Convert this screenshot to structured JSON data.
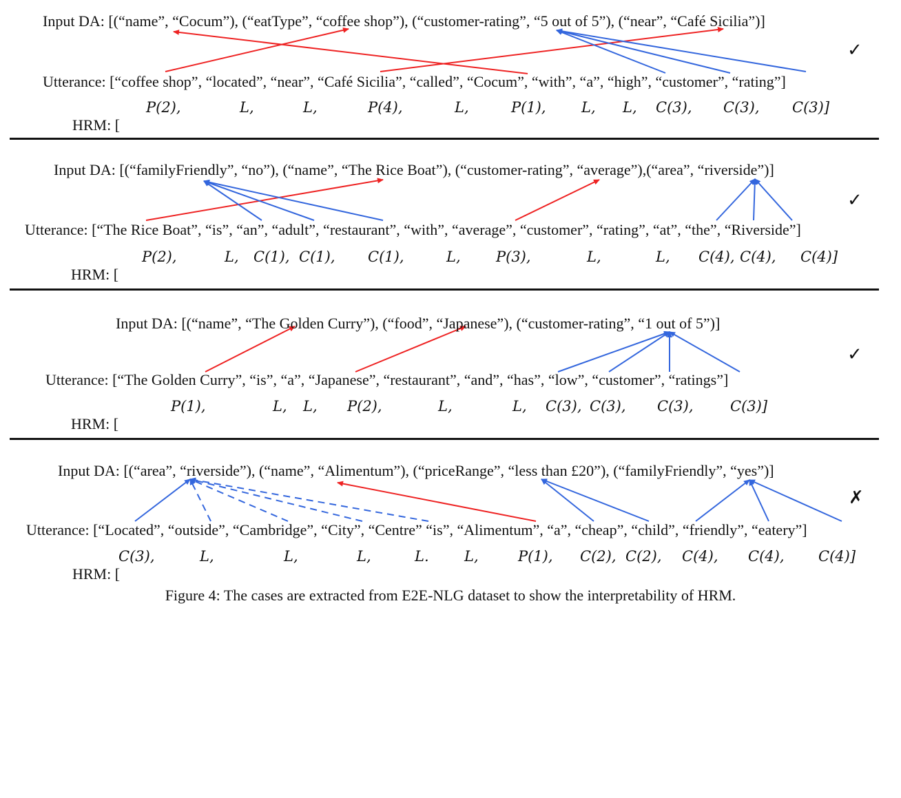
{
  "panels": [
    {
      "input_da": "Input DA: [(“name”, “Cocum”), (“eatType”, “coffee shop”), (“customer-rating”, “5 out of 5”), (“near”, “Café Sicilia”)]",
      "utterance": "Utterance: [“coffee shop”, “located”, “near”, “Café Sicilia”, “called”, “Cocum”, “with”, “a”, “high”, “customer”, “rating”]",
      "hrm_prefix": "HRM: [",
      "hrm_tokens": [
        "P(2),",
        "L,",
        "L,",
        "P(4),",
        "L,",
        "P(1),",
        "L,",
        "L,",
        "C(3),",
        "C(3),",
        "C(3)]"
      ],
      "verdict": "✓",
      "verdict_color": "#111111"
    },
    {
      "input_da": "Input DA: [(“familyFriendly”, “no”), (“name”, “The Rice Boat”), (“customer-rating”, “average”),(“area”, “riverside”)]",
      "utterance": "Utterance: [“The Rice Boat”, “is”, “an”, “adult”, “restaurant”, “with”, “average”, “customer”, “rating”, “at”, “the”, “Riverside”]",
      "hrm_prefix": "HRM: [",
      "hrm_tokens": [
        "P(2),",
        "L,",
        "C(1),",
        "C(1),",
        "C(1),",
        "L,",
        "P(3),",
        "L,",
        "L,",
        "C(4),",
        "C(4),",
        "C(4)]"
      ],
      "verdict": "✓",
      "verdict_color": "#111111"
    },
    {
      "input_da": "Input DA: [(“name”, “The Golden Curry”), (“food”, “Japanese”), (“customer-rating”, “1 out of 5”)]",
      "utterance": "Utterance: [“The Golden Curry”, “is”, “a”, “Japanese”, “restaurant”, “and”, “has”, “low”, “customer”, “ratings”]",
      "hrm_prefix": "HRM: [",
      "hrm_tokens": [
        "P(1),",
        "L,",
        "L,",
        "P(2),",
        "L,",
        "L,",
        "C(3),",
        "C(3),",
        "C(3),",
        "C(3)]"
      ],
      "verdict": "✓",
      "verdict_color": "#111111"
    },
    {
      "input_da": "Input DA: [(“area”, “riverside”), (“name”, “Alimentum”), (“priceRange”, “less than £20”), (“familyFriendly”, “yes”)]",
      "utterance": "Utterance: [“Located”, “outside”, “Cambridge”, “City”, “Centre” “is”, “Alimentum”, “a”, “cheap”, “child”, “friendly”, “eatery”]",
      "hrm_prefix": "HRM: [",
      "hrm_tokens": [
        "C(3),",
        "L,",
        "L,",
        "L,",
        "L.",
        "L,",
        "P(1),",
        "C(2),",
        "C(2),",
        "C(4),",
        "C(4),",
        "C(4)]"
      ],
      "verdict": "✗",
      "verdict_color": "#111111"
    }
  ],
  "caption": "Figure 4: The cases are extracted from E2E-NLG dataset to show the interpretability of HRM.",
  "colors": {
    "red_arrow": "#ee2222",
    "blue_arrow": "#3366dd",
    "rule": "#111111"
  }
}
